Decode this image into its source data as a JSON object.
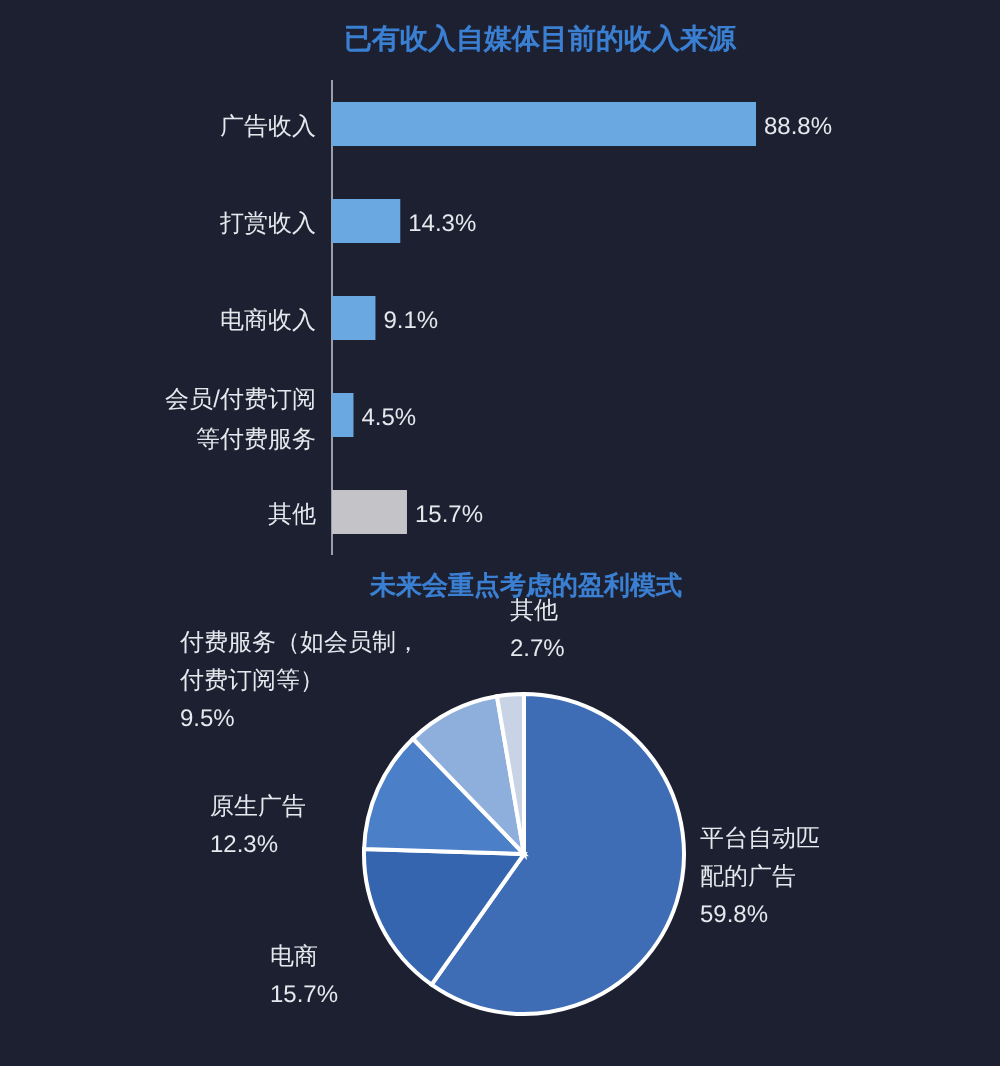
{
  "chart_data": [
    {
      "type": "bar",
      "title": "已有收入自媒体目前的收入来源",
      "orientation": "horizontal",
      "categories": [
        "广告收入",
        "打赏收入",
        "电商收入",
        "会员/付费订阅等付费服务",
        "其他"
      ],
      "values": [
        88.8,
        14.3,
        9.1,
        4.5,
        15.7
      ],
      "value_labels": [
        "88.8%",
        "14.3%",
        "9.1%",
        "4.5%",
        "15.7%"
      ],
      "colors": [
        "#6aa8e2",
        "#6aa8e2",
        "#6aa8e2",
        "#6aa8e2",
        "#c4c4c8"
      ]
    },
    {
      "type": "pie",
      "title": "未来会重点考虑的盈利模式",
      "categories": [
        "平台自动匹配的广告",
        "电商",
        "原生广告",
        "付费服务（如会员制，付费订阅等）",
        "其他"
      ],
      "values": [
        59.8,
        15.7,
        12.3,
        9.5,
        2.7
      ],
      "value_labels": [
        "59.8%",
        "15.7%",
        "12.3%",
        "9.5%",
        "2.7%"
      ],
      "colors": [
        "#3e6db6",
        "#3565ae",
        "#4b80c8",
        "#8eaedb",
        "#c8d4e6"
      ]
    }
  ]
}
